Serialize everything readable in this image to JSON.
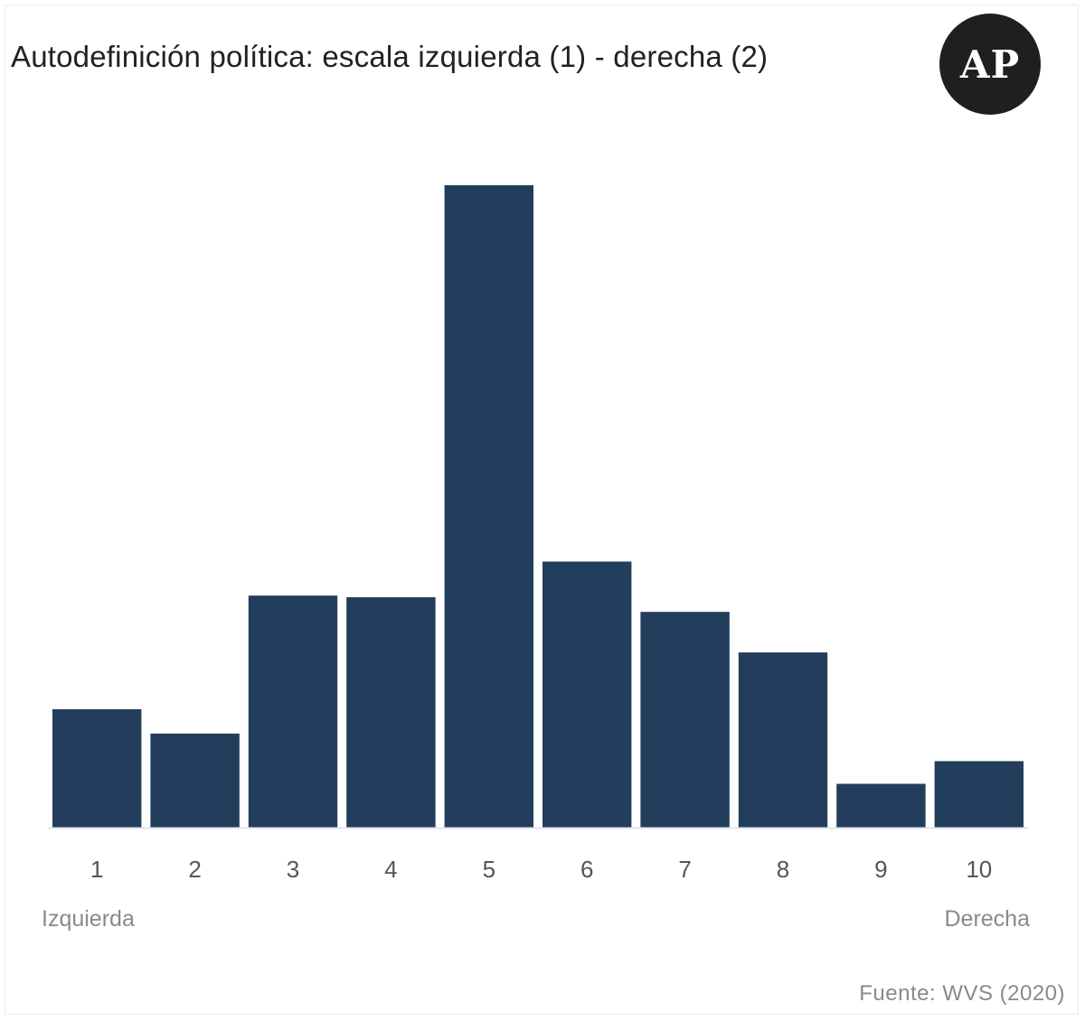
{
  "chart_data": {
    "type": "bar",
    "title": "Autodefinición política: escala izquierda (1) - derecha (2)",
    "categories": [
      "1",
      "2",
      "3",
      "4",
      "5",
      "6",
      "7",
      "8",
      "9",
      "10"
    ],
    "values": [
      7.3,
      5.8,
      14.3,
      14.2,
      39.6,
      16.4,
      13.3,
      10.8,
      2.7,
      4.1
    ],
    "ylim": [
      0,
      45
    ],
    "grid": false,
    "bar_color": "#233d5c",
    "axis_left_label": "Izquierda",
    "axis_right_label": "Derecha"
  },
  "logo": {
    "text": "AP"
  },
  "source": "Fuente: WVS (2020)"
}
